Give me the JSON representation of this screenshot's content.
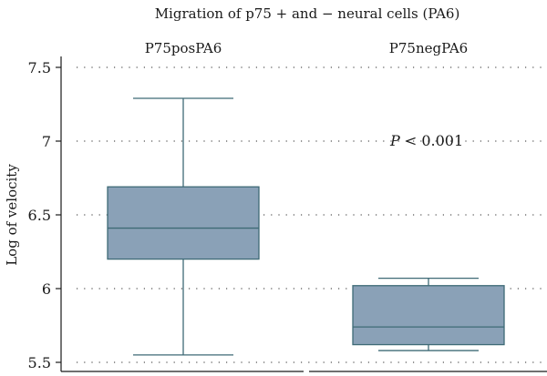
{
  "chart_data": {
    "type": "box",
    "title": "Migration of p75 + and − neural cells (PA6)",
    "ylabel": "Log of velocity",
    "xlabel": "",
    "ylim": [
      5.5,
      7.55
    ],
    "yticks": [
      5.5,
      6,
      6.5,
      7,
      7.5
    ],
    "ytick_labels": [
      "5.5",
      "6",
      "6.5",
      "7",
      "7.5"
    ],
    "grid": true,
    "box_color": "#8aa1b7",
    "line_color": "#3e6a76",
    "series": [
      {
        "name": "P75posPA6",
        "min": 5.55,
        "q1": 6.2,
        "median": 6.41,
        "q3": 6.69,
        "max": 7.29
      },
      {
        "name": "P75negPA6",
        "min": 5.58,
        "q1": 5.62,
        "median": 5.74,
        "q3": 6.02,
        "max": 6.07
      }
    ],
    "annotation": {
      "p_symbol": "P",
      "p_text": " < 0.001"
    }
  }
}
